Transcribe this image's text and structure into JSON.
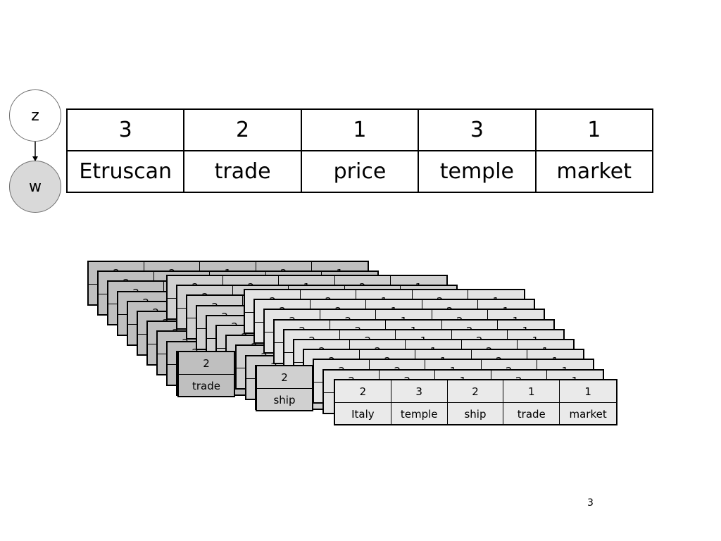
{
  "graphical_model": {
    "latent_node_label": "z",
    "observed_node_label": "w"
  },
  "main_table": {
    "topics": [
      "3",
      "2",
      "1",
      "3",
      "1"
    ],
    "words": [
      "Etruscan",
      "trade",
      "price",
      "temple",
      "market"
    ]
  },
  "document_stack": {
    "front_card": {
      "topics": [
        "2",
        "3",
        "2",
        "1",
        "1"
      ],
      "words": [
        "Italy",
        "temple",
        "ship",
        "trade",
        "market"
      ]
    },
    "peek_card_dark": {
      "topic": "2",
      "word": "trade"
    },
    "peek_card_mid": {
      "topic": "2",
      "word": "ship"
    },
    "back_card_topics": [
      "2",
      "2",
      "1",
      "2",
      "1"
    ],
    "colors": {
      "dark": "#bfbfbf",
      "mid": "#d0d0d0",
      "light": "#e4e4e4"
    }
  },
  "page_number": "3"
}
